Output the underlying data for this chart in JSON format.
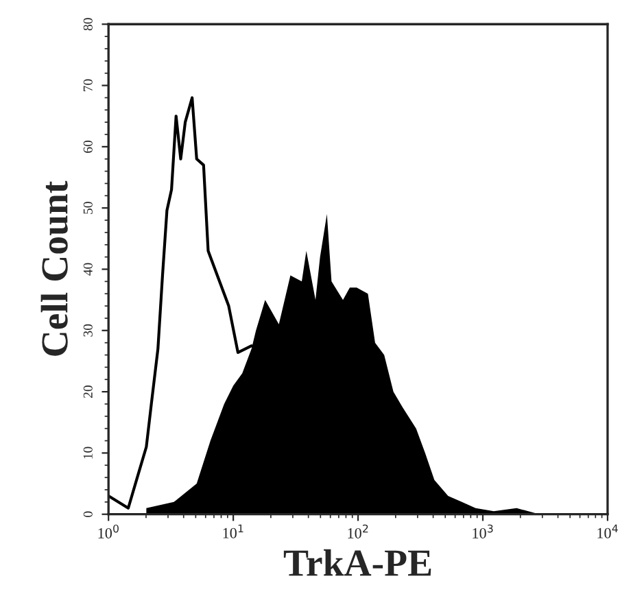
{
  "chart_data": {
    "type": "line",
    "xlabel": "TrkA-PE",
    "ylabel": "Cell Count",
    "log": "x",
    "xlim": [
      1,
      10000
    ],
    "xticks": [
      {
        "value": 1,
        "label": "10$^{0}$"
      },
      {
        "value": 10,
        "label": "10$^{1}$"
      },
      {
        "value": 100,
        "label": "10$^{2}$"
      },
      {
        "value": 1000,
        "label": "10$^{3}$"
      },
      {
        "value": 10000,
        "label": "10$^{4}$"
      }
    ],
    "ylim": [
      0,
      80
    ],
    "yticks": [
      0,
      10,
      20,
      30,
      40,
      50,
      60,
      70,
      80
    ],
    "grid": false,
    "legend": false,
    "series": [
      {
        "type": "area",
        "color": "#000000",
        "x": [
          2.01,
          3.34,
          5.09,
          6.56,
          8.45,
          10,
          11.8,
          14.0,
          15.2,
          18.0,
          23.2,
          28.7,
          35.4,
          38.5,
          45.6,
          49.6,
          56.3,
          61.3,
          75.7,
          85.9,
          97.5,
          120,
          137,
          162,
          192,
          227,
          292,
          345,
          409,
          527,
          679,
          875,
          1224,
          1866,
          2843
        ],
        "values": [
          1,
          2,
          5,
          12,
          18,
          21,
          23,
          27,
          30,
          35,
          31,
          39,
          38,
          43,
          35,
          42,
          49,
          38,
          35,
          37,
          37,
          36,
          28,
          26,
          20,
          17.5,
          14,
          10,
          5.6,
          3,
          2,
          1,
          0.5,
          1,
          0
        ]
      },
      {
        "color": "#000000",
        "x": [
          1,
          1.44,
          1.7,
          2.01,
          2.19,
          2.49,
          2.71,
          2.94,
          3.2,
          3.48,
          3.79,
          4.12,
          4.68,
          5.09,
          5.78,
          6.29,
          7.76,
          9.19,
          10.9,
          14.0
        ],
        "values": [
          3,
          1,
          6,
          11,
          17.5,
          27,
          39,
          49.6,
          53,
          65,
          58,
          64,
          68,
          58,
          57,
          43,
          38,
          34,
          26.4,
          27.5
        ]
      }
    ]
  }
}
